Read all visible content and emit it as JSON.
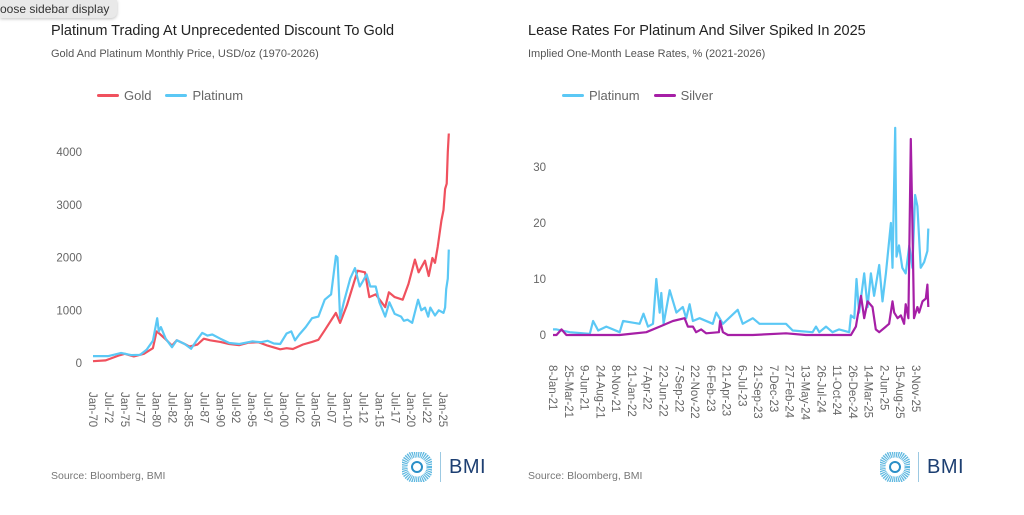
{
  "tooltip": {
    "text": "oose sidebar display"
  },
  "colors": {
    "gold": "#f0515e",
    "platinum": "#5bc8f5",
    "silver": "#a61fa6",
    "brand": "#1d3f72"
  },
  "brand": {
    "name": "BMI",
    "icon": "bmi-logo-icon"
  },
  "chart_data": [
    {
      "type": "line",
      "title": "Platinum Trading At Unprecedented Discount To Gold",
      "subtitle": "Gold And Platinum Monthly Price, USD/oz (1970-2026)",
      "source": "Source: Bloomberg, BMI",
      "legend": "top-left",
      "grid": false,
      "ylim": [
        0,
        4400
      ],
      "yticks": [
        "0",
        "1000",
        "2000",
        "3000",
        "4000"
      ],
      "xticks": [
        "Jan-70",
        "Jul-72",
        "Jan-75",
        "Jul-77",
        "Jan-80",
        "Jul-82",
        "Jan-85",
        "Jul-87",
        "Jan-90",
        "Jul-92",
        "Jan-95",
        "Jul-97",
        "Jan-00",
        "Jul-02",
        "Jan-05",
        "Jul-07",
        "Jan-10",
        "Jul-12",
        "Jan-15",
        "Jul-17",
        "Jan-20",
        "Jul-22",
        "Jan-25"
      ],
      "series": [
        {
          "name": "Gold",
          "color": "#f0515e",
          "points": [
            [
              "1970-01",
              35
            ],
            [
              "1972-01",
              50
            ],
            [
              "1974-01",
              140
            ],
            [
              "1975-01",
              175
            ],
            [
              "1976-06",
              125
            ],
            [
              "1978-01",
              175
            ],
            [
              "1979-06",
              280
            ],
            [
              "1980-01",
              600
            ],
            [
              "1980-06",
              560
            ],
            [
              "1981-06",
              450
            ],
            [
              "1982-06",
              330
            ],
            [
              "1983-03",
              430
            ],
            [
              "1984-06",
              360
            ],
            [
              "1985-03",
              310
            ],
            [
              "1986-06",
              350
            ],
            [
              "1987-06",
              460
            ],
            [
              "1988-06",
              430
            ],
            [
              "1990-01",
              400
            ],
            [
              "1991-06",
              360
            ],
            [
              "1993-01",
              340
            ],
            [
              "1994-06",
              385
            ],
            [
              "1996-01",
              395
            ],
            [
              "1997-06",
              330
            ],
            [
              "1999-06",
              260
            ],
            [
              "2000-06",
              280
            ],
            [
              "2001-06",
              265
            ],
            [
              "2003-01",
              350
            ],
            [
              "2004-06",
              400
            ],
            [
              "2005-06",
              440
            ],
            [
              "2006-06",
              620
            ],
            [
              "2008-03",
              950
            ],
            [
              "2008-11",
              760
            ],
            [
              "2009-12",
              1100
            ],
            [
              "2011-08",
              1750
            ],
            [
              "2012-10",
              1720
            ],
            [
              "2013-06",
              1250
            ],
            [
              "2014-06",
              1300
            ],
            [
              "2015-12",
              1060
            ],
            [
              "2016-07",
              1340
            ],
            [
              "2017-06",
              1250
            ],
            [
              "2018-09",
              1200
            ],
            [
              "2019-08",
              1500
            ],
            [
              "2020-08",
              1960
            ],
            [
              "2021-03",
              1720
            ],
            [
              "2022-03",
              1940
            ],
            [
              "2022-10",
              1650
            ],
            [
              "2023-05",
              1990
            ],
            [
              "2023-10",
              1900
            ],
            [
              "2024-03",
              2200
            ],
            [
              "2024-10",
              2700
            ],
            [
              "2025-02",
              2900
            ],
            [
              "2025-05",
              3300
            ],
            [
              "2025-08",
              3400
            ],
            [
              "2025-10",
              4000
            ],
            [
              "2025-12",
              4350
            ]
          ]
        },
        {
          "name": "Platinum",
          "color": "#5bc8f5",
          "points": [
            [
              "1970-01",
              130
            ],
            [
              "1972-06",
              130
            ],
            [
              "1973-06",
              160
            ],
            [
              "1974-06",
              190
            ],
            [
              "1976-01",
              150
            ],
            [
              "1977-06",
              155
            ],
            [
              "1978-06",
              250
            ],
            [
              "1979-06",
              420
            ],
            [
              "1980-02",
              850
            ],
            [
              "1980-05",
              600
            ],
            [
              "1980-09",
              680
            ],
            [
              "1981-06",
              460
            ],
            [
              "1982-06",
              300
            ],
            [
              "1983-03",
              430
            ],
            [
              "1984-06",
              360
            ],
            [
              "1985-06",
              270
            ],
            [
              "1986-06",
              450
            ],
            [
              "1987-03",
              570
            ],
            [
              "1988-01",
              520
            ],
            [
              "1988-10",
              540
            ],
            [
              "1990-01",
              460
            ],
            [
              "1991-06",
              380
            ],
            [
              "1993-01",
              360
            ],
            [
              "1995-01",
              410
            ],
            [
              "1996-06",
              395
            ],
            [
              "1997-06",
              420
            ],
            [
              "1998-06",
              370
            ],
            [
              "1999-06",
              360
            ],
            [
              "2000-06",
              560
            ],
            [
              "2001-03",
              600
            ],
            [
              "2001-10",
              430
            ],
            [
              "2002-06",
              540
            ],
            [
              "2003-06",
              680
            ],
            [
              "2004-06",
              850
            ],
            [
              "2005-06",
              880
            ],
            [
              "2006-06",
              1200
            ],
            [
              "2007-06",
              1300
            ],
            [
              "2008-03",
              2030
            ],
            [
              "2008-06",
              2000
            ],
            [
              "2008-11",
              850
            ],
            [
              "2009-06",
              1150
            ],
            [
              "2010-06",
              1600
            ],
            [
              "2011-03",
              1800
            ],
            [
              "2011-12",
              1450
            ],
            [
              "2012-06",
              1550
            ],
            [
              "2013-01",
              1680
            ],
            [
              "2013-08",
              1450
            ],
            [
              "2014-06",
              1450
            ],
            [
              "2015-01",
              1150
            ],
            [
              "2015-12",
              880
            ],
            [
              "2016-08",
              1150
            ],
            [
              "2017-06",
              930
            ],
            [
              "2018-06",
              880
            ],
            [
              "2018-11",
              800
            ],
            [
              "2019-06",
              820
            ],
            [
              "2020-03",
              760
            ],
            [
              "2021-02",
              1200
            ],
            [
              "2021-08",
              1000
            ],
            [
              "2022-03",
              1050
            ],
            [
              "2022-09",
              880
            ],
            [
              "2023-01",
              1050
            ],
            [
              "2023-10",
              900
            ],
            [
              "2024-05",
              1000
            ],
            [
              "2025-02",
              950
            ],
            [
              "2025-05",
              1050
            ],
            [
              "2025-07",
              1400
            ],
            [
              "2025-10",
              1600
            ],
            [
              "2025-12",
              2150
            ]
          ]
        }
      ]
    },
    {
      "type": "line",
      "title": "Lease Rates For Platinum And Silver Spiked In 2025",
      "subtitle": "Implied One-Month Lease Rates, % (2021-2026)",
      "source": "Source: Bloomberg, BMI",
      "legend": "top-left",
      "grid": false,
      "ylim": [
        -1,
        38
      ],
      "yticks": [
        "0",
        "10",
        "20",
        "30"
      ],
      "xticks": [
        "8-Jan-21",
        "25-Mar-21",
        "9-Jun-21",
        "24-Aug-21",
        "8-Nov-21",
        "21-Jan-22",
        "7-Apr-22",
        "22-Jun-22",
        "7-Sep-22",
        "22-Nov-22",
        "6-Feb-23",
        "21-Apr-23",
        "6-Jul-23",
        "21-Sep-23",
        "7-Dec-23",
        "27-Feb-24",
        "13-May-24",
        "26-Jul-24",
        "11-Oct-24",
        "26-Dec-24",
        "14-Mar-25",
        "2-Jun-25",
        "15-Aug-25",
        "3-Nov-25"
      ],
      "series": [
        {
          "name": "Platinum",
          "color": "#5bc8f5",
          "points": [
            [
              "2021-01-08",
              1
            ],
            [
              "2021-01-25",
              1
            ],
            [
              "2021-03-28",
              0.5
            ],
            [
              "2021-07-04",
              0.2
            ],
            [
              "2021-07-20",
              2.5
            ],
            [
              "2021-08-14",
              0.8
            ],
            [
              "2021-09-23",
              1.5
            ],
            [
              "2021-11-27",
              0.5
            ],
            [
              "2021-12-13",
              2.5
            ],
            [
              "2022-03-02",
              2
            ],
            [
              "2022-03-21",
              3.8
            ],
            [
              "2022-04-12",
              1.5
            ],
            [
              "2022-05-06",
              2
            ],
            [
              "2022-05-22",
              10
            ],
            [
              "2022-06-08",
              4
            ],
            [
              "2022-06-16",
              7.5
            ],
            [
              "2022-06-27",
              2
            ],
            [
              "2022-07-26",
              8
            ],
            [
              "2022-08-28",
              4
            ],
            [
              "2022-09-29",
              5
            ],
            [
              "2022-10-15",
              3
            ],
            [
              "2022-11-01",
              5.5
            ],
            [
              "2022-11-17",
              2.5
            ],
            [
              "2022-12-19",
              3
            ],
            [
              "2023-02-22",
              2
            ],
            [
              "2023-03-08",
              4
            ],
            [
              "2023-04-10",
              2
            ],
            [
              "2023-06-21",
              4.5
            ],
            [
              "2023-07-15",
              2
            ],
            [
              "2023-09-03",
              3
            ],
            [
              "2023-10-05",
              2
            ],
            [
              "2024-02-12",
              2
            ],
            [
              "2024-03-14",
              0.8
            ],
            [
              "2024-06-19",
              0.5
            ],
            [
              "2024-07-05",
              1.5
            ],
            [
              "2024-07-21",
              0.5
            ],
            [
              "2024-08-23",
              1.5
            ],
            [
              "2024-09-24",
              0.5
            ],
            [
              "2024-10-26",
              1
            ],
            [
              "2024-12-14",
              0.5
            ],
            [
              "2024-12-22",
              3.5
            ],
            [
              "2025-01-08",
              3
            ],
            [
              "2025-01-19",
              10
            ],
            [
              "2025-02-01",
              4
            ],
            [
              "2025-02-26",
              11
            ],
            [
              "2025-03-12",
              5
            ],
            [
              "2025-03-28",
              11
            ],
            [
              "2025-04-13",
              7
            ],
            [
              "2025-05-07",
              12.5
            ],
            [
              "2025-05-23",
              6
            ],
            [
              "2025-06-09",
              11
            ],
            [
              "2025-07-03",
              20
            ],
            [
              "2025-07-11",
              12
            ],
            [
              "2025-07-24",
              37
            ],
            [
              "2025-07-30",
              14
            ],
            [
              "2025-08-12",
              16
            ],
            [
              "2025-08-28",
              12
            ],
            [
              "2025-09-14",
              11
            ],
            [
              "2025-10-01",
              16
            ],
            [
              "2025-10-16",
              12
            ],
            [
              "2025-10-29",
              25
            ],
            [
              "2025-11-10",
              23
            ],
            [
              "2025-11-26",
              12
            ],
            [
              "2025-12-12",
              13
            ],
            [
              "2025-12-28",
              15
            ],
            [
              "2026-01-02",
              19
            ]
          ]
        },
        {
          "name": "Silver",
          "color": "#a61fa6",
          "points": [
            [
              "2021-01-08",
              0
            ],
            [
              "2021-01-25",
              0
            ],
            [
              "2021-02-19",
              1
            ],
            [
              "2021-03-12",
              0
            ],
            [
              "2021-11-27",
              0
            ],
            [
              "2022-04-04",
              0.5
            ],
            [
              "2022-06-08",
              1.5
            ],
            [
              "2022-08-11",
              2.5
            ],
            [
              "2022-10-07",
              3
            ],
            [
              "2022-10-23",
              1.5
            ],
            [
              "2022-11-17",
              1.5
            ],
            [
              "2022-12-02",
              0.5
            ],
            [
              "2022-12-26",
              1
            ],
            [
              "2023-01-20",
              0.3
            ],
            [
              "2023-03-21",
              0.5
            ],
            [
              "2023-03-27",
              2.5
            ],
            [
              "2023-04-10",
              0.5
            ],
            [
              "2023-05-04",
              0
            ],
            [
              "2023-09-03",
              0
            ],
            [
              "2024-02-12",
              0.3
            ],
            [
              "2024-05-17",
              0
            ],
            [
              "2024-12-22",
              0
            ],
            [
              "2025-01-16",
              1.5
            ],
            [
              "2025-02-10",
              7
            ],
            [
              "2025-02-26",
              3
            ],
            [
              "2025-03-12",
              6
            ],
            [
              "2025-04-05",
              5
            ],
            [
              "2025-04-21",
              1
            ],
            [
              "2025-05-07",
              0.5
            ],
            [
              "2025-06-09",
              1.5
            ],
            [
              "2025-06-25",
              2
            ],
            [
              "2025-07-11",
              6
            ],
            [
              "2025-07-19",
              4
            ],
            [
              "2025-08-05",
              3
            ],
            [
              "2025-08-21",
              3.5
            ],
            [
              "2025-09-06",
              2
            ],
            [
              "2025-09-14",
              5.5
            ],
            [
              "2025-09-27",
              3
            ],
            [
              "2025-10-08",
              35
            ],
            [
              "2025-10-16",
              20
            ],
            [
              "2025-10-24",
              3
            ],
            [
              "2025-11-10",
              5
            ],
            [
              "2025-11-18",
              4
            ],
            [
              "2025-12-04",
              6
            ],
            [
              "2025-12-20",
              6.5
            ],
            [
              "2025-12-28",
              9
            ],
            [
              "2026-01-02",
              5
            ]
          ]
        }
      ]
    }
  ]
}
